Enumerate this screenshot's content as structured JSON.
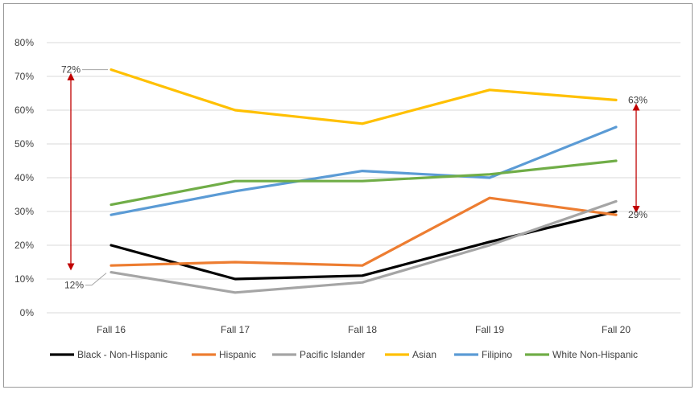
{
  "chart_data": {
    "type": "line",
    "title": "",
    "xlabel": "",
    "ylabel": "",
    "categories": [
      "Fall 16",
      "Fall 17",
      "Fall 18",
      "Fall 19",
      "Fall 20"
    ],
    "ylim": [
      0,
      80
    ],
    "yticks": [
      "0%",
      "10%",
      "20%",
      "30%",
      "40%",
      "50%",
      "60%",
      "70%",
      "80%"
    ],
    "grid": true,
    "legend_position": "bottom",
    "series": [
      {
        "name": "Black - Non-Hispanic",
        "color": "#000000",
        "values": [
          20,
          10,
          11,
          21,
          30
        ]
      },
      {
        "name": "Hispanic",
        "color": "#ED7D31",
        "values": [
          14,
          15,
          14,
          34,
          29
        ]
      },
      {
        "name": "Pacific Islander",
        "color": "#A5A5A5",
        "values": [
          12,
          6,
          9,
          20,
          33
        ]
      },
      {
        "name": "Asian",
        "color": "#FFC000",
        "values": [
          72,
          60,
          56,
          66,
          63
        ]
      },
      {
        "name": "Filipino",
        "color": "#5B9BD5",
        "values": [
          29,
          36,
          42,
          40,
          55
        ]
      },
      {
        "name": "White Non-Hispanic",
        "color": "#70AD47",
        "values": [
          32,
          39,
          39,
          41,
          45
        ]
      }
    ],
    "annotations": [
      {
        "text": "72%",
        "series": "Asian",
        "x": "Fall 16",
        "y": 72
      },
      {
        "text": "12%",
        "series": "Pacific Islander",
        "x": "Fall 16",
        "y": 12
      },
      {
        "text": "63%",
        "series": "Asian",
        "x": "Fall 20",
        "y": 63
      },
      {
        "text": "29%",
        "series": "Hispanic",
        "x": "Fall 20",
        "y": 29
      }
    ],
    "gap_arrows": [
      {
        "x": "Fall 16",
        "from": 72,
        "to": 12,
        "color": "#C00000"
      },
      {
        "x": "Fall 20",
        "from": 63,
        "to": 29,
        "color": "#C00000"
      }
    ]
  }
}
